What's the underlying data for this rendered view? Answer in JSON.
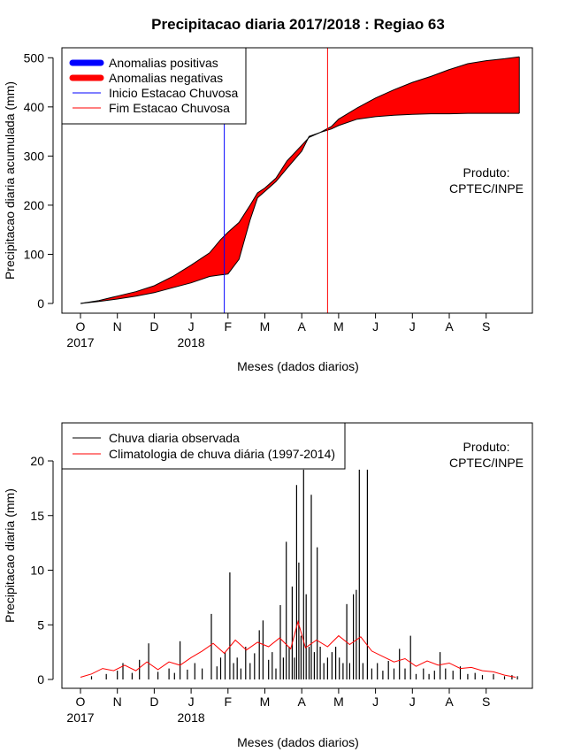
{
  "colors": {
    "positive": "#0000ff",
    "negative": "#ff0000",
    "start_line": "#0000ff",
    "end_line": "#ff0000",
    "observed": "#000000",
    "climatology": "#ff0000"
  },
  "chart_data": [
    {
      "type": "area",
      "title": "Precipitacao diaria 2017/2018 : Regiao 63",
      "xlabel": "Meses (dados diarios)",
      "ylabel": "Precipitacao diaria acumulada (mm)",
      "ylim": [
        0,
        510
      ],
      "yticks": [
        0,
        100,
        200,
        300,
        400,
        500
      ],
      "months": [
        "O",
        "N",
        "D",
        "J",
        "F",
        "M",
        "A",
        "M",
        "J",
        "J",
        "A",
        "S"
      ],
      "year_labels": [
        {
          "month_index": 0,
          "label": "2017"
        },
        {
          "month_index": 3,
          "label": "2018"
        }
      ],
      "legend": {
        "position": "top-left",
        "items": [
          {
            "label": "Anomalias positivas",
            "color": "#0000ff",
            "kind": "thick"
          },
          {
            "label": "Anomalias negativas",
            "color": "#ff0000",
            "kind": "thick"
          },
          {
            "label": "Inicio Estacao Chuvosa",
            "color": "#0000ff",
            "kind": "thin"
          },
          {
            "label": "Fim Estacao Chuvosa",
            "color": "#ff0000",
            "kind": "thin"
          }
        ]
      },
      "annotation": [
        "Produto:",
        "CPTEC/INPE"
      ],
      "rainy_season_start_month": 3.9,
      "rainy_season_end_month": 6.7,
      "observed_cumulative": {
        "month": [
          0,
          0.5,
          1,
          1.5,
          2,
          2.5,
          3,
          3.5,
          3.8,
          4,
          4.3,
          4.6,
          4.8,
          5,
          5.3,
          5.6,
          6,
          6.2,
          6.5,
          6.8,
          7,
          7.5,
          8,
          8.5,
          9,
          9.5,
          10,
          10.5,
          11,
          11.5,
          11.9
        ],
        "value": [
          0,
          4,
          9,
          15,
          22,
          32,
          42,
          55,
          58,
          60,
          90,
          170,
          215,
          228,
          248,
          275,
          310,
          340,
          348,
          355,
          362,
          375,
          380,
          383,
          385,
          386,
          386,
          387,
          387,
          387,
          387
        ]
      },
      "climatology_cumulative": {
        "month": [
          0,
          0.5,
          1,
          1.5,
          2,
          2.5,
          3,
          3.5,
          3.8,
          4,
          4.3,
          4.6,
          4.8,
          5,
          5.3,
          5.6,
          6,
          6.2,
          6.5,
          6.8,
          7,
          7.5,
          8,
          8.5,
          9,
          9.5,
          10,
          10.5,
          11,
          11.5,
          11.9
        ],
        "value": [
          0,
          6,
          15,
          24,
          36,
          55,
          78,
          103,
          130,
          145,
          165,
          200,
          225,
          235,
          255,
          290,
          322,
          338,
          348,
          360,
          375,
          398,
          418,
          435,
          450,
          462,
          476,
          488,
          494,
          498,
          502
        ]
      }
    },
    {
      "type": "bar",
      "xlabel": "Meses (dados diarios)",
      "ylabel": "Precipitacao diaria (mm)",
      "ylim": [
        -0.9,
        23.5
      ],
      "yticks": [
        0,
        5,
        10,
        15,
        20
      ],
      "months": [
        "O",
        "N",
        "D",
        "J",
        "F",
        "M",
        "A",
        "M",
        "J",
        "J",
        "A",
        "S"
      ],
      "year_labels": [
        {
          "month_index": 0,
          "label": "2017"
        },
        {
          "month_index": 3,
          "label": "2018"
        }
      ],
      "legend": {
        "position": "top-left",
        "items": [
          {
            "label": "Chuva diaria observada",
            "color": "#000000"
          },
          {
            "label": "Climatologia de chuva diária (1997-2014)",
            "color": "#ff0000"
          }
        ]
      },
      "annotation": [
        "Produto:",
        "CPTEC/INPE"
      ],
      "observed_bars": [
        {
          "month": 0.3,
          "value": 0.3
        },
        {
          "month": 0.7,
          "value": 0.5
        },
        {
          "month": 1.0,
          "value": 0.8
        },
        {
          "month": 1.15,
          "value": 1.5
        },
        {
          "month": 1.4,
          "value": 0.6
        },
        {
          "month": 1.6,
          "value": 1.8
        },
        {
          "month": 1.85,
          "value": 3.3
        },
        {
          "month": 2.1,
          "value": 0.7
        },
        {
          "month": 2.4,
          "value": 1.0
        },
        {
          "month": 2.55,
          "value": 0.6
        },
        {
          "month": 2.7,
          "value": 3.5
        },
        {
          "month": 2.9,
          "value": 0.9
        },
        {
          "month": 3.1,
          "value": 1.5
        },
        {
          "month": 3.3,
          "value": 1.0
        },
        {
          "month": 3.55,
          "value": 6.0
        },
        {
          "month": 3.7,
          "value": 1.2
        },
        {
          "month": 3.8,
          "value": 2.0
        },
        {
          "month": 3.92,
          "value": 2.5
        },
        {
          "month": 4.05,
          "value": 9.8
        },
        {
          "month": 4.15,
          "value": 1.5
        },
        {
          "month": 4.25,
          "value": 2.0
        },
        {
          "month": 4.35,
          "value": 1.0
        },
        {
          "month": 4.48,
          "value": 3.0
        },
        {
          "month": 4.6,
          "value": 1.5
        },
        {
          "month": 4.72,
          "value": 2.4
        },
        {
          "month": 4.85,
          "value": 4.5
        },
        {
          "month": 4.95,
          "value": 5.4
        },
        {
          "month": 5.1,
          "value": 1.8
        },
        {
          "month": 5.2,
          "value": 2.5
        },
        {
          "month": 5.3,
          "value": 1.0
        },
        {
          "month": 5.42,
          "value": 6.8
        },
        {
          "month": 5.5,
          "value": 2.0
        },
        {
          "month": 5.58,
          "value": 12.6
        },
        {
          "month": 5.66,
          "value": 3.0
        },
        {
          "month": 5.74,
          "value": 8.5
        },
        {
          "month": 5.8,
          "value": 2.0
        },
        {
          "month": 5.86,
          "value": 17.8
        },
        {
          "month": 5.92,
          "value": 10.7
        },
        {
          "month": 5.98,
          "value": 4.0
        },
        {
          "month": 6.05,
          "value": 19.2
        },
        {
          "month": 6.12,
          "value": 7.8
        },
        {
          "month": 6.2,
          "value": 3.0
        },
        {
          "month": 6.26,
          "value": 16.9
        },
        {
          "month": 6.34,
          "value": 2.5
        },
        {
          "month": 6.42,
          "value": 12.1
        },
        {
          "month": 6.5,
          "value": 3.0
        },
        {
          "month": 6.6,
          "value": 1.5
        },
        {
          "month": 6.7,
          "value": 2.0
        },
        {
          "month": 6.82,
          "value": 2.5
        },
        {
          "month": 6.92,
          "value": 3.0
        },
        {
          "month": 7.02,
          "value": 2.0
        },
        {
          "month": 7.12,
          "value": 1.5
        },
        {
          "month": 7.22,
          "value": 6.9
        },
        {
          "month": 7.3,
          "value": 1.5
        },
        {
          "month": 7.4,
          "value": 7.8
        },
        {
          "month": 7.48,
          "value": 8.2
        },
        {
          "month": 7.56,
          "value": 19.2
        },
        {
          "month": 7.66,
          "value": 1.5
        },
        {
          "month": 7.78,
          "value": 19.2
        },
        {
          "month": 7.9,
          "value": 1.0
        },
        {
          "month": 8.05,
          "value": 1.5
        },
        {
          "month": 8.2,
          "value": 0.8
        },
        {
          "month": 8.35,
          "value": 1.7
        },
        {
          "month": 8.5,
          "value": 1.0
        },
        {
          "month": 8.65,
          "value": 2.8
        },
        {
          "month": 8.8,
          "value": 1.0
        },
        {
          "month": 8.95,
          "value": 4.0
        },
        {
          "month": 9.1,
          "value": 0.5
        },
        {
          "month": 9.3,
          "value": 1.0
        },
        {
          "month": 9.45,
          "value": 0.5
        },
        {
          "month": 9.6,
          "value": 0.8
        },
        {
          "month": 9.75,
          "value": 2.5
        },
        {
          "month": 9.9,
          "value": 1.0
        },
        {
          "month": 10.1,
          "value": 0.8
        },
        {
          "month": 10.3,
          "value": 1.2
        },
        {
          "month": 10.5,
          "value": 0.5
        },
        {
          "month": 10.7,
          "value": 0.6
        },
        {
          "month": 10.9,
          "value": 0.4
        },
        {
          "month": 11.2,
          "value": 0.5
        },
        {
          "month": 11.5,
          "value": 0.3
        },
        {
          "month": 11.7,
          "value": 0.4
        },
        {
          "month": 11.85,
          "value": 0.3
        }
      ],
      "climatology_line": {
        "month": [
          0,
          0.3,
          0.6,
          0.9,
          1.2,
          1.5,
          1.8,
          2.1,
          2.4,
          2.7,
          3.0,
          3.3,
          3.6,
          3.9,
          4.2,
          4.5,
          4.8,
          5.1,
          5.4,
          5.7,
          5.9,
          6.1,
          6.4,
          6.7,
          7.0,
          7.3,
          7.6,
          7.9,
          8.2,
          8.5,
          8.8,
          9.1,
          9.4,
          9.7,
          10.0,
          10.3,
          10.6,
          10.9,
          11.2,
          11.5,
          11.8
        ],
        "value": [
          0.2,
          0.5,
          1.0,
          0.8,
          1.3,
          0.8,
          1.6,
          0.9,
          1.6,
          1.3,
          2.0,
          2.6,
          3.3,
          2.4,
          3.6,
          2.7,
          3.4,
          3.0,
          3.8,
          2.8,
          5.3,
          2.9,
          3.6,
          3.0,
          4.0,
          3.2,
          3.9,
          2.6,
          2.1,
          1.6,
          1.9,
          1.2,
          1.7,
          1.3,
          1.5,
          1.0,
          1.1,
          0.8,
          0.7,
          0.4,
          0.2
        ]
      }
    }
  ]
}
